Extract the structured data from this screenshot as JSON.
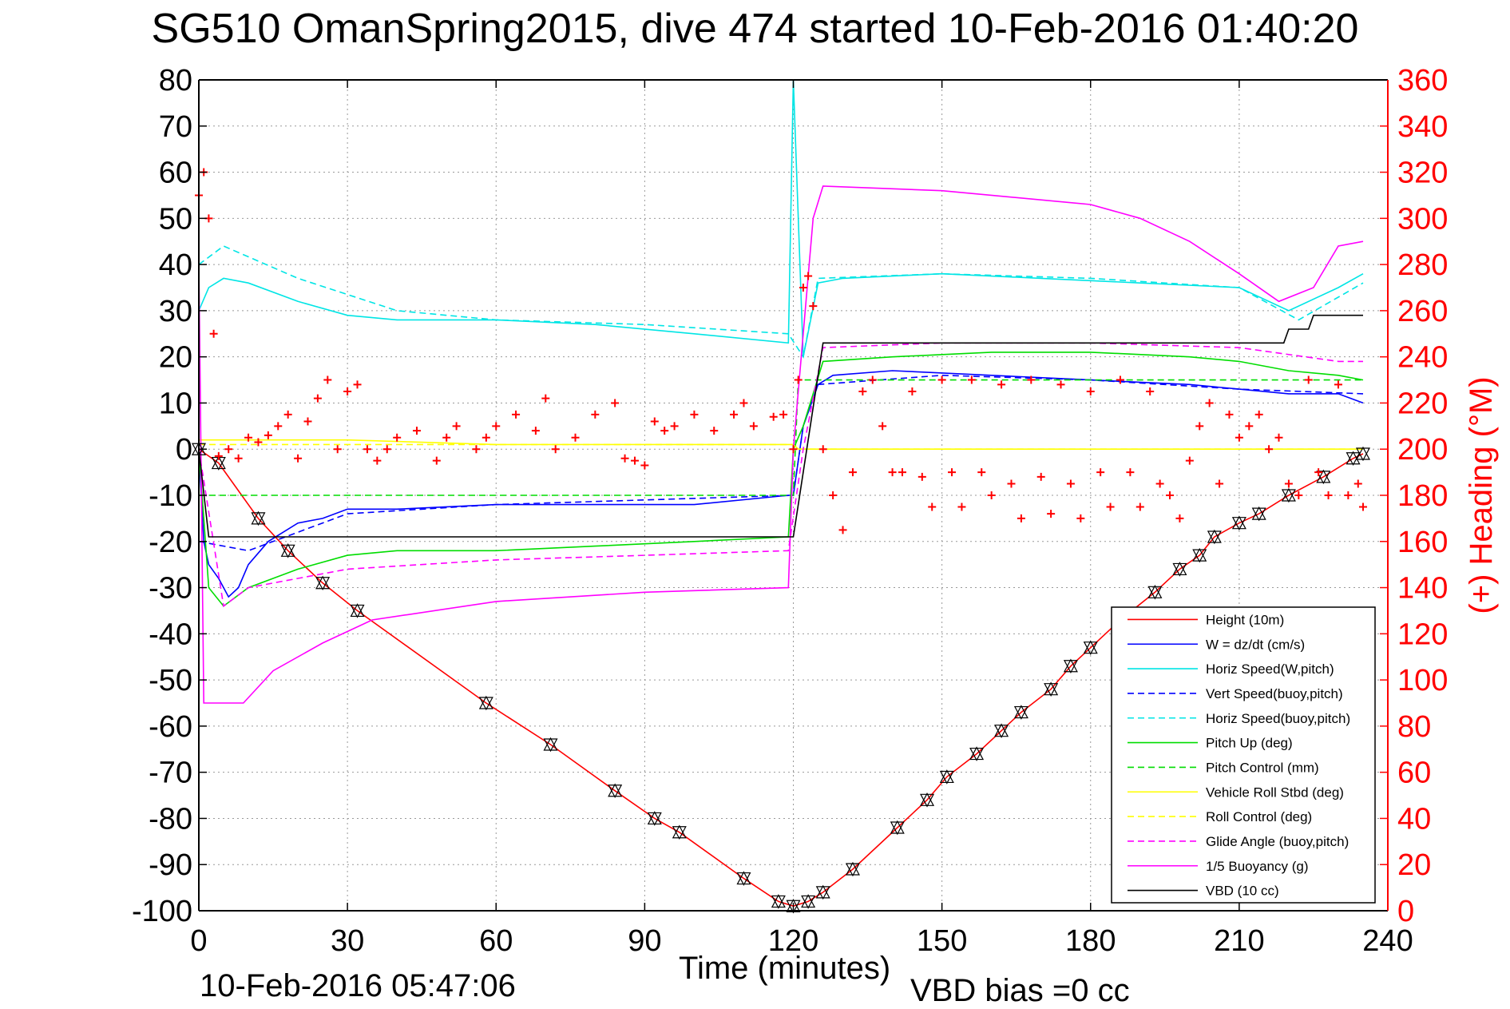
{
  "chart_data": {
    "type": "line",
    "title": "SG510 OmanSpring2015, dive 474 started 10-Feb-2016 01:40:20",
    "xlabel": "Time (minutes)",
    "ylabel_right": "(+) Heading (°M)",
    "footer_time": "10-Feb-2016 05:47:06",
    "footer_bias": "VBD bias =0 cc",
    "xlim": [
      0,
      240
    ],
    "ylim_left": [
      -100,
      80
    ],
    "ylim_right": [
      0,
      360
    ],
    "x_ticks": [
      "0",
      "30",
      "60",
      "90",
      "120",
      "150",
      "180",
      "210",
      "240"
    ],
    "y_ticks_left": [
      "80",
      "70",
      "60",
      "50",
      "40",
      "30",
      "20",
      "10",
      "0",
      "-10",
      "-20",
      "-30",
      "-40",
      "-50",
      "-60",
      "-70",
      "-80",
      "-90",
      "-100"
    ],
    "y_ticks_right": [
      "360",
      "340",
      "320",
      "300",
      "280",
      "260",
      "240",
      "220",
      "200",
      "180",
      "160",
      "140",
      "120",
      "100",
      "80",
      "60",
      "40",
      "20",
      "0"
    ],
    "grid": true,
    "legend_position": "bottom-right",
    "series": [
      {
        "name": "Height (10m)",
        "color": "#ff0000",
        "style": "solid",
        "x": [
          0,
          4,
          12,
          18,
          25,
          32,
          58,
          71,
          84,
          92,
          97,
          110,
          117,
          120,
          123,
          126,
          132,
          141,
          147,
          151,
          157,
          162,
          166,
          172,
          176,
          180,
          186,
          193,
          198,
          202,
          205,
          210,
          214,
          220,
          227,
          233,
          235
        ],
        "y": [
          0,
          -3,
          -15,
          -22,
          -29,
          -35,
          -55,
          -64,
          -74,
          -80,
          -83,
          -93,
          -98,
          -99,
          -98,
          -96,
          -91,
          -82,
          -76,
          -71,
          -66,
          -61,
          -57,
          -52,
          -47,
          -43,
          -37,
          -31,
          -26,
          -23,
          -19,
          -16,
          -14,
          -10,
          -6,
          -2,
          -1
        ]
      },
      {
        "name": "W = dz/dt (cm/s)",
        "color": "#0000ff",
        "style": "solid",
        "x": [
          0,
          1,
          2,
          4,
          6,
          8,
          10,
          14,
          20,
          25,
          30,
          40,
          60,
          80,
          100,
          119,
          120,
          122,
          125,
          128,
          140,
          160,
          180,
          200,
          210,
          220,
          230,
          235
        ],
        "y": [
          0,
          -20,
          -25,
          -28,
          -32,
          -30,
          -25,
          -20,
          -16,
          -15,
          -13,
          -13,
          -12,
          -12,
          -12,
          -10,
          -10,
          5,
          14,
          16,
          17,
          16,
          15,
          14,
          13,
          12,
          12,
          10
        ]
      },
      {
        "name": "Horiz Speed(W,pitch)",
        "color": "#00e5e5",
        "style": "solid",
        "x": [
          0,
          2,
          5,
          10,
          20,
          30,
          40,
          60,
          80,
          100,
          119,
          120,
          122,
          125,
          130,
          150,
          170,
          190,
          210,
          220,
          230,
          235
        ],
        "y": [
          30,
          35,
          37,
          36,
          32,
          29,
          28,
          28,
          27,
          25,
          23,
          80,
          20,
          36,
          37,
          38,
          37,
          36,
          35,
          30,
          35,
          38
        ]
      },
      {
        "name": "Vert Speed(buoy,pitch)",
        "color": "#0000ff",
        "style": "dashed",
        "x": [
          0,
          10,
          30,
          60,
          90,
          120,
          122,
          125,
          150,
          180,
          210,
          235
        ],
        "y": [
          -20,
          -22,
          -14,
          -12,
          -11,
          -10,
          5,
          14,
          16,
          15,
          13,
          12
        ]
      },
      {
        "name": "Horiz Speed(buoy,pitch)",
        "color": "#00e5e5",
        "style": "dashed",
        "x": [
          0,
          5,
          20,
          40,
          60,
          90,
          119,
          122,
          125,
          150,
          180,
          210,
          222,
          235
        ],
        "y": [
          40,
          44,
          37,
          30,
          28,
          27,
          25,
          20,
          37,
          38,
          37,
          35,
          28,
          36
        ]
      },
      {
        "name": "Pitch Up (deg)",
        "color": "#00dd00",
        "style": "solid",
        "x": [
          0,
          2,
          5,
          10,
          20,
          30,
          40,
          60,
          80,
          100,
          119,
          120,
          122,
          126,
          140,
          160,
          180,
          200,
          210,
          220,
          230,
          235
        ],
        "y": [
          0,
          -30,
          -34,
          -30,
          -26,
          -23,
          -22,
          -22,
          -21,
          -20,
          -19,
          0,
          5,
          19,
          20,
          21,
          21,
          20,
          19,
          17,
          16,
          15
        ]
      },
      {
        "name": "Pitch Control (mm)",
        "color": "#00dd00",
        "style": "dashed",
        "x": [
          0,
          120,
          121,
          235
        ],
        "y": [
          -10,
          -10,
          15,
          15
        ]
      },
      {
        "name": "Vehicle Roll Stbd (deg)",
        "color": "#ffff00",
        "style": "solid",
        "x": [
          0,
          10,
          30,
          60,
          90,
          120,
          121,
          150,
          180,
          210,
          235
        ],
        "y": [
          2,
          2,
          2,
          1,
          1,
          1,
          0,
          0,
          0,
          0,
          0
        ]
      },
      {
        "name": "Roll Control (deg)",
        "color": "#ffff00",
        "style": "dashed",
        "x": [
          0,
          120,
          121,
          235
        ],
        "y": [
          1,
          1,
          0,
          0
        ]
      },
      {
        "name": "Glide Angle (buoy,pitch)",
        "color": "#ff00ff",
        "style": "dashed",
        "x": [
          0,
          5,
          10,
          20,
          30,
          60,
          90,
          119,
          122,
          126,
          150,
          180,
          210,
          230,
          235
        ],
        "y": [
          0,
          -34,
          -30,
          -28,
          -26,
          -24,
          -23,
          -22,
          0,
          22,
          23,
          23,
          22,
          19,
          19
        ]
      },
      {
        "name": "1/5 Buoyancy (g)",
        "color": "#ff00ff",
        "style": "solid",
        "x": [
          0,
          1,
          3,
          9,
          15,
          25,
          35,
          60,
          90,
          119,
          120,
          124,
          126,
          150,
          180,
          190,
          200,
          210,
          218,
          225,
          230,
          235
        ],
        "y": [
          40,
          -55,
          -55,
          -55,
          -48,
          -42,
          -37,
          -33,
          -31,
          -30,
          0,
          50,
          57,
          56,
          53,
          50,
          45,
          38,
          32,
          35,
          44,
          45
        ]
      },
      {
        "name": "VBD (10 cc)",
        "color": "#000000",
        "style": "solid",
        "x": [
          0,
          2,
          5,
          119,
          120,
          126,
          150,
          180,
          219,
          220,
          224,
          225,
          235
        ],
        "y": [
          0,
          -19,
          -19,
          -19,
          -19,
          23,
          23,
          23,
          23,
          26,
          26,
          29,
          29
        ]
      }
    ],
    "heading": {
      "name": "(+) Heading (°M)",
      "color": "#ff0000",
      "marker": "+",
      "x": [
        0,
        1,
        2,
        3,
        4,
        6,
        8,
        10,
        12,
        14,
        16,
        18,
        20,
        22,
        24,
        26,
        28,
        30,
        32,
        34,
        36,
        38,
        40,
        44,
        48,
        50,
        52,
        56,
        58,
        60,
        64,
        68,
        70,
        72,
        76,
        80,
        84,
        86,
        88,
        90,
        92,
        94,
        96,
        100,
        104,
        108,
        110,
        112,
        116,
        118,
        120,
        121,
        122,
        123,
        124,
        126,
        128,
        130,
        132,
        134,
        136,
        138,
        140,
        142,
        144,
        146,
        148,
        150,
        152,
        154,
        156,
        158,
        160,
        162,
        164,
        166,
        168,
        170,
        172,
        174,
        176,
        178,
        180,
        182,
        184,
        186,
        188,
        190,
        192,
        194,
        196,
        198,
        200,
        202,
        204,
        206,
        208,
        210,
        212,
        214,
        216,
        218,
        220,
        222,
        224,
        226,
        228,
        230,
        232,
        234,
        235
      ],
      "y": [
        310,
        320,
        300,
        250,
        197,
        200,
        196,
        205,
        203,
        206,
        210,
        215,
        196,
        212,
        222,
        230,
        200,
        225,
        228,
        200,
        195,
        200,
        205,
        208,
        195,
        205,
        210,
        200,
        205,
        210,
        215,
        208,
        222,
        200,
        205,
        215,
        220,
        196,
        195,
        193,
        212,
        208,
        210,
        215,
        208,
        215,
        220,
        210,
        214,
        215,
        200,
        230,
        270,
        275,
        262,
        200,
        180,
        165,
        190,
        225,
        230,
        210,
        190,
        190,
        225,
        188,
        175,
        230,
        190,
        175,
        230,
        190,
        180,
        228,
        185,
        170,
        230,
        188,
        172,
        228,
        185,
        170,
        225,
        190,
        175,
        230,
        190,
        175,
        225,
        185,
        180,
        170,
        195,
        210,
        220,
        185,
        215,
        205,
        210,
        215,
        200,
        205,
        185,
        180,
        230,
        190,
        180,
        228,
        180,
        185,
        175
      ]
    }
  }
}
